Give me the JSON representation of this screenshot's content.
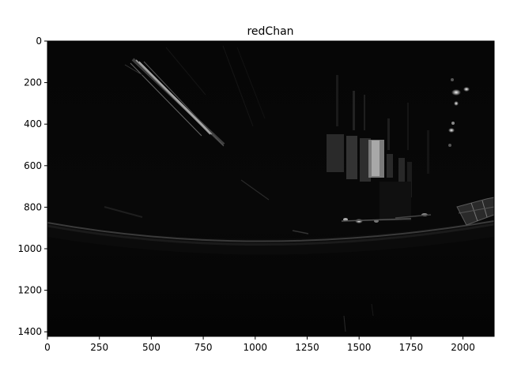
{
  "figure": {
    "title": "redChan",
    "colormap": "gray",
    "image_subject": "long-exposure night photo with bright streaks, grayscale red channel",
    "x_axis": {
      "range": [
        0,
        2150
      ],
      "ticks": [
        0,
        250,
        500,
        750,
        1000,
        1250,
        1500,
        1750,
        2000
      ],
      "tick_labels": [
        "0",
        "250",
        "500",
        "750",
        "1000",
        "1250",
        "1500",
        "1750",
        "2000"
      ]
    },
    "y_axis": {
      "range": [
        0,
        1422
      ],
      "inverted": true,
      "ticks": [
        0,
        200,
        400,
        600,
        800,
        1000,
        1200,
        1400
      ],
      "tick_labels": [
        "0",
        "200",
        "400",
        "600",
        "800",
        "1000",
        "1200",
        "1400"
      ]
    },
    "colors": {
      "background": "#ffffff",
      "image_base": "#050505",
      "axis": "#000000"
    }
  }
}
